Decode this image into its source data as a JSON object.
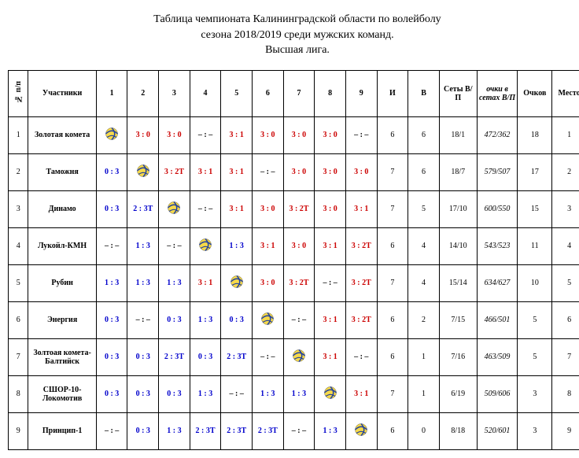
{
  "title": {
    "line1": "Таблица чемпионата Калининградской области по волейболу",
    "line2": "сезона 2018/2019 среди мужских команд.",
    "line3": "Высшая лига."
  },
  "headers": {
    "num": "№ п/п",
    "team": "Участники",
    "c1": "1",
    "c2": "2",
    "c3": "3",
    "c4": "4",
    "c5": "5",
    "c6": "6",
    "c7": "7",
    "c8": "8",
    "c9": "9",
    "i": "И",
    "v": "В",
    "sets": "Сеты В/П",
    "pts": "очки в сетах В/П",
    "ochkov": "Очков",
    "place": "Место"
  },
  "rows": [
    {
      "n": "1",
      "team": "Золотая комета",
      "s": [
        "BALL",
        {
          "t": "3 : 0",
          "c": "red"
        },
        {
          "t": "3 : 0",
          "c": "red"
        },
        {
          "t": "– : –",
          "c": "black"
        },
        {
          "t": "3 : 1",
          "c": "red"
        },
        {
          "t": "3 : 0",
          "c": "red"
        },
        {
          "t": "3 : 0",
          "c": "red"
        },
        {
          "t": "3 : 0",
          "c": "red"
        },
        {
          "t": "– : –",
          "c": "black"
        }
      ],
      "i": "6",
      "v": "6",
      "sets": "18/1",
      "pts": "472/362",
      "ochkov": "18",
      "place": "1"
    },
    {
      "n": "2",
      "team": "Таможня",
      "s": [
        {
          "t": "0 : 3",
          "c": "blue"
        },
        "BALL",
        {
          "t": "3 : 2Т",
          "c": "red"
        },
        {
          "t": "3 : 1",
          "c": "red"
        },
        {
          "t": "3 : 1",
          "c": "red"
        },
        {
          "t": "– : –",
          "c": "black"
        },
        {
          "t": "3 : 0",
          "c": "red"
        },
        {
          "t": "3 : 0",
          "c": "red"
        },
        {
          "t": "3 : 0",
          "c": "red"
        }
      ],
      "i": "7",
      "v": "6",
      "sets": "18/7",
      "pts": "579/507",
      "ochkov": "17",
      "place": "2"
    },
    {
      "n": "3",
      "team": "Динамо",
      "s": [
        {
          "t": "0 : 3",
          "c": "blue"
        },
        {
          "t": "2 : 3Т",
          "c": "blue"
        },
        "BALL",
        {
          "t": "– : –",
          "c": "black"
        },
        {
          "t": "3 : 1",
          "c": "red"
        },
        {
          "t": "3 : 0",
          "c": "red"
        },
        {
          "t": "3 : 2Т",
          "c": "red"
        },
        {
          "t": "3 : 0",
          "c": "red"
        },
        {
          "t": "3 : 1",
          "c": "red"
        }
      ],
      "i": "7",
      "v": "5",
      "sets": "17/10",
      "pts": "600/550",
      "ochkov": "15",
      "place": "3"
    },
    {
      "n": "4",
      "team": "Лукойл-КМН",
      "s": [
        {
          "t": "– : –",
          "c": "black"
        },
        {
          "t": "1 : 3",
          "c": "blue"
        },
        {
          "t": "– : –",
          "c": "black"
        },
        "BALL",
        {
          "t": "1 : 3",
          "c": "blue"
        },
        {
          "t": "3 : 1",
          "c": "red"
        },
        {
          "t": "3 : 0",
          "c": "red"
        },
        {
          "t": "3 : 1",
          "c": "red"
        },
        {
          "t": "3 : 2Т",
          "c": "red"
        }
      ],
      "i": "6",
      "v": "4",
      "sets": "14/10",
      "pts": "543/523",
      "ochkov": "11",
      "place": "4"
    },
    {
      "n": "5",
      "team": "Рубин",
      "s": [
        {
          "t": "1 : 3",
          "c": "blue"
        },
        {
          "t": "1 : 3",
          "c": "blue"
        },
        {
          "t": "1 : 3",
          "c": "blue"
        },
        {
          "t": "3 : 1",
          "c": "red"
        },
        "BALL",
        {
          "t": "3 : 0",
          "c": "red"
        },
        {
          "t": "3 : 2Т",
          "c": "red"
        },
        {
          "t": "– : –",
          "c": "black"
        },
        {
          "t": "3 : 2Т",
          "c": "red"
        }
      ],
      "i": "7",
      "v": "4",
      "sets": "15/14",
      "pts": "634/627",
      "ochkov": "10",
      "place": "5"
    },
    {
      "n": "6",
      "team": "Энергия",
      "s": [
        {
          "t": "0 : 3",
          "c": "blue"
        },
        {
          "t": "– : –",
          "c": "black"
        },
        {
          "t": "0 : 3",
          "c": "blue"
        },
        {
          "t": "1 : 3",
          "c": "blue"
        },
        {
          "t": "0 : 3",
          "c": "blue"
        },
        "BALL",
        {
          "t": "– : –",
          "c": "black"
        },
        {
          "t": "3 : 1",
          "c": "red"
        },
        {
          "t": "3 : 2Т",
          "c": "red"
        }
      ],
      "i": "6",
      "v": "2",
      "sets": "7/15",
      "pts": "466/501",
      "ochkov": "5",
      "place": "6"
    },
    {
      "n": "7",
      "team": "Золтоая комета-Балтийск",
      "s": [
        {
          "t": "0 : 3",
          "c": "blue"
        },
        {
          "t": "0 : 3",
          "c": "blue"
        },
        {
          "t": "2 : 3Т",
          "c": "blue"
        },
        {
          "t": "0 : 3",
          "c": "blue"
        },
        {
          "t": "2 : 3Т",
          "c": "blue"
        },
        {
          "t": "– : –",
          "c": "black"
        },
        "BALL",
        {
          "t": "3 : 1",
          "c": "red"
        },
        {
          "t": "– : –",
          "c": "black"
        }
      ],
      "i": "6",
      "v": "1",
      "sets": "7/16",
      "pts": "463/509",
      "ochkov": "5",
      "place": "7"
    },
    {
      "n": "8",
      "team": "СШОР-10-Локомотив",
      "s": [
        {
          "t": "0 : 3",
          "c": "blue"
        },
        {
          "t": "0 : 3",
          "c": "blue"
        },
        {
          "t": "0 : 3",
          "c": "blue"
        },
        {
          "t": "1 : 3",
          "c": "blue"
        },
        {
          "t": "– : –",
          "c": "black"
        },
        {
          "t": "1 : 3",
          "c": "blue"
        },
        {
          "t": "1 : 3",
          "c": "blue"
        },
        "BALL",
        {
          "t": "3 : 1",
          "c": "red"
        }
      ],
      "i": "7",
      "v": "1",
      "sets": "6/19",
      "pts": "509/606",
      "ochkov": "3",
      "place": "8"
    },
    {
      "n": "9",
      "team": "Принцип-1",
      "s": [
        {
          "t": "– : –",
          "c": "black"
        },
        {
          "t": "0 : 3",
          "c": "blue"
        },
        {
          "t": "1 : 3",
          "c": "blue"
        },
        {
          "t": "2 : 3Т",
          "c": "blue"
        },
        {
          "t": "2 : 3Т",
          "c": "blue"
        },
        {
          "t": "2 : 3Т",
          "c": "blue"
        },
        {
          "t": "– : –",
          "c": "black"
        },
        {
          "t": "1 : 3",
          "c": "blue"
        },
        "BALL"
      ],
      "i": "6",
      "v": "0",
      "sets": "8/18",
      "pts": "520/601",
      "ochkov": "3",
      "place": "9"
    }
  ]
}
